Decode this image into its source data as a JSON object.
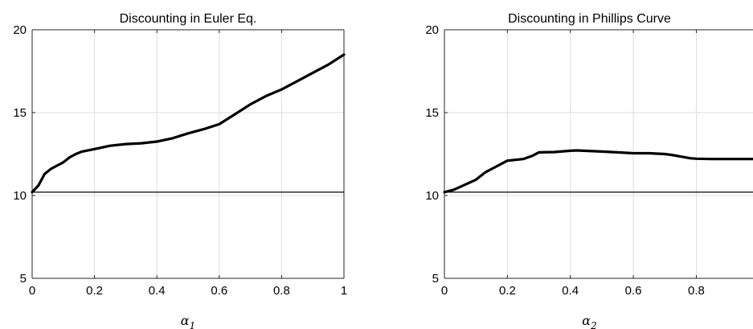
{
  "chart_data": [
    {
      "type": "line",
      "title": "Discounting in Euler Eq.",
      "xlabel": {
        "symbol": "α",
        "subscript": "1"
      },
      "ylabel": "",
      "xlim": [
        0,
        1
      ],
      "ylim": [
        5,
        20
      ],
      "xticks": [
        "0",
        "0.2",
        "0.4",
        "0.6",
        "0.8",
        "1"
      ],
      "yticks": [
        "5",
        "10",
        "15",
        "20"
      ],
      "grid": true,
      "reference_line": 10.2,
      "series": [
        {
          "x": [
            0,
            0.02,
            0.04,
            0.06,
            0.08,
            0.1,
            0.12,
            0.14,
            0.16,
            0.2,
            0.25,
            0.3,
            0.35,
            0.4,
            0.45,
            0.5,
            0.55,
            0.6,
            0.65,
            0.7,
            0.75,
            0.8,
            0.85,
            0.9,
            0.95,
            1.0
          ],
          "y": [
            10.2,
            10.6,
            11.3,
            11.6,
            11.8,
            12.0,
            12.3,
            12.5,
            12.65,
            12.8,
            13.0,
            13.1,
            13.15,
            13.25,
            13.45,
            13.75,
            14.0,
            14.3,
            14.9,
            15.5,
            16.0,
            16.4,
            16.9,
            17.4,
            17.9,
            18.5
          ]
        }
      ]
    },
    {
      "type": "line",
      "title": "Discounting in Phillips Curve",
      "xlabel": {
        "symbol": "α",
        "subscript": "2"
      },
      "ylabel": "",
      "xlim": [
        0,
        0.98
      ],
      "ylim": [
        5,
        20
      ],
      "xticks": [
        "0",
        "0.2",
        "0.4",
        "0.6",
        "0.8"
      ],
      "yticks": [
        "5",
        "10",
        "15",
        "20"
      ],
      "grid": true,
      "reference_line": 10.2,
      "series": [
        {
          "x": [
            0,
            0.03,
            0.06,
            0.1,
            0.13,
            0.16,
            0.2,
            0.25,
            0.28,
            0.3,
            0.35,
            0.4,
            0.42,
            0.5,
            0.55,
            0.6,
            0.65,
            0.7,
            0.72,
            0.75,
            0.78,
            0.8,
            0.85,
            0.9,
            0.95,
            0.98
          ],
          "y": [
            10.2,
            10.35,
            10.6,
            10.95,
            11.4,
            11.7,
            12.1,
            12.2,
            12.4,
            12.6,
            12.62,
            12.7,
            12.72,
            12.65,
            12.6,
            12.55,
            12.55,
            12.5,
            12.45,
            12.35,
            12.25,
            12.22,
            12.2,
            12.2,
            12.2,
            12.2
          ]
        }
      ]
    }
  ]
}
